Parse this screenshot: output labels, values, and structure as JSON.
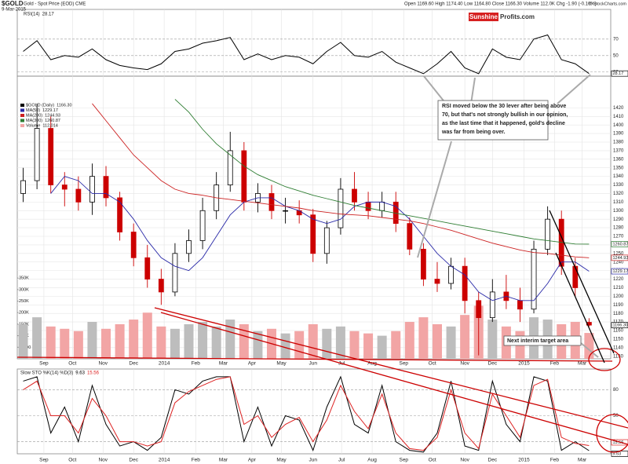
{
  "header": {
    "symbol": "$GOLD",
    "title": "Gold - Spot Price (EOD) CME",
    "date": "9-Mar-2015",
    "quote": "Open 1169.60  High 1174.40  Low 1164.80  Close 1166.30  Volume 112.0K  Chg -1.90 (-0.16%)",
    "source": "© StockCharts.com",
    "watermark": [
      "Sunshine",
      "Profits.com"
    ]
  },
  "annotations": [
    {
      "lines": [
        "RSI moved below the 30 lever after being above",
        "70, but that's not strongly bullish in our opinion,",
        "as the last time that it happened, gold's decline",
        "was far from being over."
      ]
    },
    {
      "lines": [
        "Next interim target area"
      ]
    }
  ],
  "chart_data": [
    {
      "type": "line",
      "ylim": [
        25,
        106
      ],
      "yticks": [
        30,
        50,
        70
      ],
      "series": [
        {
          "name": "RSI(14)",
          "color": "#000000",
          "values": [
            55,
            68,
            45,
            50,
            48,
            58,
            45,
            38,
            35,
            33,
            40,
            55,
            58,
            65,
            68,
            72,
            45,
            52,
            45,
            50,
            48,
            40,
            55,
            66,
            50,
            48,
            55,
            42,
            35,
            28,
            40,
            55,
            35,
            28,
            58,
            48,
            45,
            70,
            75,
            45,
            40,
            28.17
          ]
        }
      ]
    },
    {
      "type": "candlestick",
      "name": "$GOLD (Daily)",
      "last_label": "1166.30",
      "xlim": [
        "2013-08-06",
        "2015-03-31"
      ],
      "xticks": [
        {
          "value": "2013-09-02",
          "label": "Sep"
        },
        {
          "value": "2013-10-01",
          "label": "Oct"
        },
        {
          "value": "2013-11-01",
          "label": "Nov"
        },
        {
          "value": "2013-12-02",
          "label": "Dec"
        },
        {
          "value": "2014-01-02",
          "label": "2014"
        },
        {
          "value": "2014-02-03",
          "label": "Feb"
        },
        {
          "value": "2014-03-03",
          "label": "Mar"
        },
        {
          "value": "2014-04-01",
          "label": "Apr"
        },
        {
          "value": "2014-05-01",
          "label": "May"
        },
        {
          "value": "2014-06-02",
          "label": "Jun"
        },
        {
          "value": "2014-07-01",
          "label": "Jul"
        },
        {
          "value": "2014-08-01",
          "label": "Aug"
        },
        {
          "value": "2014-09-02",
          "label": "Sep"
        },
        {
          "value": "2014-10-01",
          "label": "Oct"
        },
        {
          "value": "2014-11-03",
          "label": "Nov"
        },
        {
          "value": "2014-12-01",
          "label": "Dec"
        },
        {
          "value": "2015-01-02",
          "label": "2015"
        },
        {
          "value": "2015-02-02",
          "label": "Feb"
        },
        {
          "value": "2015-03-02",
          "label": "Mar"
        }
      ],
      "x": [
        "2013-08-12",
        "2013-08-26",
        "2013-09-09",
        "2013-09-23",
        "2013-10-07",
        "2013-10-21",
        "2013-11-04",
        "2013-11-18",
        "2013-12-02",
        "2013-12-16",
        "2013-12-30",
        "2014-01-13",
        "2014-01-27",
        "2014-02-10",
        "2014-02-24",
        "2014-03-10",
        "2014-03-24",
        "2014-04-07",
        "2014-04-21",
        "2014-05-05",
        "2014-05-19",
        "2014-06-02",
        "2014-06-16",
        "2014-06-30",
        "2014-07-14",
        "2014-07-28",
        "2014-08-11",
        "2014-08-25",
        "2014-09-08",
        "2014-09-22",
        "2014-10-06",
        "2014-10-20",
        "2014-11-03",
        "2014-11-17",
        "2014-12-01",
        "2014-12-15",
        "2014-12-29",
        "2015-01-12",
        "2015-01-26",
        "2015-02-09",
        "2015-02-23",
        "2015-03-09"
      ],
      "open": [
        1320,
        1335,
        1396,
        1330,
        1325,
        1310,
        1340,
        1315,
        1275,
        1245,
        1220,
        1205,
        1250,
        1265,
        1300,
        1330,
        1370,
        1310,
        1320,
        1300,
        1300,
        1295,
        1250,
        1280,
        1325,
        1310,
        1300,
        1310,
        1285,
        1255,
        1220,
        1215,
        1235,
        1195,
        1175,
        1205,
        1195,
        1185,
        1255,
        1290,
        1235,
        1169.6
      ],
      "high": [
        1350,
        1425,
        1410,
        1345,
        1340,
        1355,
        1352,
        1322,
        1285,
        1260,
        1232,
        1262,
        1278,
        1315,
        1345,
        1392,
        1380,
        1332,
        1330,
        1315,
        1312,
        1302,
        1288,
        1338,
        1345,
        1322,
        1322,
        1322,
        1292,
        1262,
        1240,
        1245,
        1245,
        1205,
        1220,
        1225,
        1210,
        1265,
        1305,
        1300,
        1245,
        1174.4
      ],
      "low": [
        1310,
        1325,
        1320,
        1305,
        1300,
        1295,
        1305,
        1265,
        1235,
        1210,
        1190,
        1200,
        1240,
        1255,
        1290,
        1322,
        1300,
        1298,
        1290,
        1285,
        1285,
        1240,
        1238,
        1272,
        1300,
        1290,
        1292,
        1275,
        1248,
        1212,
        1205,
        1208,
        1180,
        1131,
        1170,
        1185,
        1170,
        1180,
        1248,
        1225,
        1200,
        1164.8
      ],
      "close": [
        1335,
        1396,
        1330,
        1325,
        1310,
        1340,
        1315,
        1275,
        1245,
        1220,
        1205,
        1250,
        1265,
        1300,
        1330,
        1370,
        1310,
        1320,
        1300,
        1300,
        1295,
        1250,
        1280,
        1325,
        1310,
        1300,
        1310,
        1285,
        1255,
        1220,
        1215,
        1235,
        1195,
        1175,
        1205,
        1195,
        1185,
        1255,
        1290,
        1235,
        1210,
        1166.3
      ],
      "ylim": [
        1127,
        1457
      ],
      "yticks": [
        1130,
        1140,
        1150,
        1160,
        1170,
        1180,
        1190,
        1200,
        1210,
        1220,
        1230,
        1240,
        1250,
        1260,
        1270,
        1280,
        1290,
        1300,
        1310,
        1320,
        1330,
        1340,
        1350,
        1360,
        1370,
        1380,
        1390,
        1400,
        1410,
        1420
      ],
      "up_color": "#000000",
      "down_color": "#cc0000",
      "series": [
        {
          "name": "MA(50)",
          "color": "#2a2aa8",
          "values": [
            null,
            null,
            1320,
            1340,
            1335,
            1320,
            1320,
            1310,
            1290,
            1265,
            1245,
            1235,
            1230,
            1245,
            1270,
            1295,
            1310,
            1315,
            1315,
            1305,
            1300,
            1290,
            1285,
            1290,
            1305,
            1310,
            1310,
            1305,
            1290,
            1270,
            1250,
            1235,
            1225,
            1205,
            1195,
            1200,
            1195,
            1195,
            1215,
            1240,
            1240,
            1229.17
          ]
        },
        {
          "name": "MA(200)",
          "color": "#cc2222",
          "values": [
            null,
            null,
            null,
            null,
            null,
            1425,
            1405,
            1385,
            1365,
            1350,
            1335,
            1325,
            1320,
            1318,
            1315,
            1313,
            1311,
            1309,
            1307,
            1305,
            1303,
            1300,
            1298,
            1296,
            1295,
            1294,
            1292,
            1290,
            1288,
            1285,
            1281,
            1277,
            1272,
            1267,
            1262,
            1258,
            1254,
            1251,
            1250,
            1248,
            1246,
            1244.93
          ]
        },
        {
          "name": "MA(300)",
          "color": "#2e7d32",
          "values": [
            null,
            null,
            null,
            null,
            null,
            null,
            null,
            null,
            null,
            null,
            null,
            1430,
            1415,
            1395,
            1378,
            1365,
            1352,
            1342,
            1335,
            1328,
            1323,
            1318,
            1314,
            1310,
            1306,
            1303,
            1300,
            1297,
            1294,
            1291,
            1288,
            1285,
            1282,
            1279,
            1276,
            1273,
            1270,
            1267,
            1265,
            1263,
            1261,
            1260.87
          ]
        }
      ],
      "volume": {
        "name": "Volume",
        "last_label": "112,014",
        "up_color": "#bdbdbd",
        "down_color": "#f2a5a5",
        "ylim": [
          0,
          1225000
        ],
        "yticks": [
          50000,
          {
            "value": 100000,
            "label": "100K"
          },
          {
            "value": 150000,
            "label": "150K"
          },
          {
            "value": 200000,
            "label": "200K"
          },
          {
            "value": 250000,
            "label": "250K"
          },
          {
            "value": 300000,
            "label": "300K"
          },
          {
            "value": 350000,
            "label": "350K"
          }
        ],
        "values": [
          150000,
          180000,
          140000,
          130000,
          120000,
          160000,
          130000,
          150000,
          170000,
          200000,
          140000,
          130000,
          150000,
          160000,
          140000,
          170000,
          150000,
          120000,
          130000,
          110000,
          120000,
          150000,
          130000,
          140000,
          120000,
          110000,
          100000,
          120000,
          160000,
          180000,
          150000,
          140000,
          190000,
          230000,
          170000,
          140000,
          120000,
          180000,
          170000,
          150000,
          160000,
          112014
        ]
      }
    },
    {
      "type": "line",
      "name": "Slow STO %K(14) %D(3)",
      "ylim": [
        6,
        104
      ],
      "yticks": [
        20,
        50,
        80
      ],
      "series": [
        {
          "name": "%K",
          "color": "#000000",
          "values": [
            90,
            95,
            30,
            60,
            20,
            85,
            40,
            15,
            20,
            10,
            25,
            80,
            75,
            90,
            95,
            95,
            20,
            60,
            15,
            50,
            45,
            10,
            60,
            95,
            40,
            30,
            85,
            20,
            10,
            8,
            30,
            90,
            15,
            10,
            90,
            40,
            20,
            95,
            90,
            10,
            20,
            9.63
          ]
        },
        {
          "name": "%D",
          "color": "#dd2222",
          "values": [
            80,
            90,
            50,
            50,
            30,
            70,
            50,
            20,
            20,
            15,
            20,
            65,
            78,
            85,
            92,
            95,
            40,
            50,
            25,
            40,
            48,
            20,
            45,
            85,
            55,
            35,
            75,
            30,
            12,
            10,
            25,
            80,
            30,
            12,
            75,
            50,
            25,
            85,
            92,
            25,
            18,
            15.56
          ]
        }
      ]
    }
  ]
}
